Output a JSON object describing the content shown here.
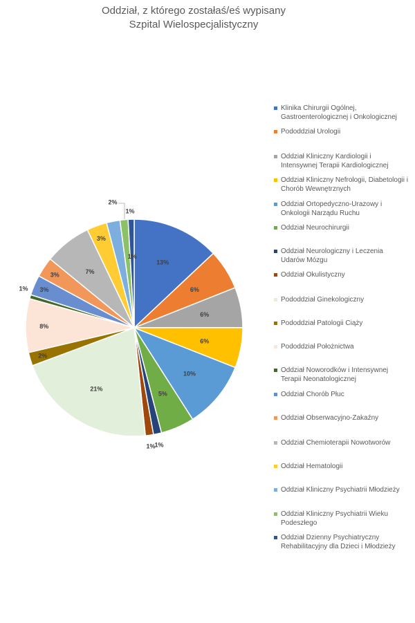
{
  "chart_data": {
    "type": "pie",
    "title": "Oddział, z którego zostałaś/eś wypisany",
    "subtitle": "Szpital Wielospecjalistyczny",
    "legend_position": "right",
    "slices": [
      {
        "label": "Klinika Chirurgii Ogólnej, Gastroenterologicznej i Onkologicznej",
        "value": 13,
        "display": "13%",
        "color": "#4472C4"
      },
      {
        "label": "Pododdział Urologii",
        "value": 6,
        "display": "6%",
        "color": "#ED7D31"
      },
      {
        "label": "Oddział Kliniczny Kardiologii i Intensywnej Terapii Kardiologicznej",
        "value": 6,
        "display": "6%",
        "color": "#A5A5A5"
      },
      {
        "label": "Oddział Kliniczny Nefrologii, Diabetologii i Chorób Wewnętrznych",
        "value": 6,
        "display": "6%",
        "color": "#FFC000"
      },
      {
        "label": "Oddział Ortopedyczno-Urazowy i Onkologii Narządu Ruchu",
        "value": 10,
        "display": "10%",
        "color": "#5B9BD5"
      },
      {
        "label": "Oddział Neurochirurgii",
        "value": 5,
        "display": "5%",
        "color": "#70AD47"
      },
      {
        "label": "Oddział Neurologiczny i Leczenia Udarów Mózgu",
        "value": 1.2,
        "display": "1%",
        "color": "#264478"
      },
      {
        "label": "Oddział Okulistyczny",
        "value": 1.2,
        "display": "1%",
        "color": "#9E480E"
      },
      {
        "label": "Pododdział Ginekologiczny",
        "value": 21,
        "display": "21%",
        "color": "#E2EFDA"
      },
      {
        "label": "Pododdział Patologii Ciąży",
        "value": 2,
        "display": "2%",
        "color": "#997300"
      },
      {
        "label": "Pododdział Położnictwa",
        "value": 8,
        "display": "8%",
        "color": "#FCE4D6"
      },
      {
        "label": "Oddział Noworodków i Intensywnej Terapii Neonatologicznej",
        "value": 0.6,
        "display": "1%",
        "color": "#43682B"
      },
      {
        "label": "Oddział Chorób Płuc",
        "value": 3,
        "display": "3%",
        "color": "#698ED0"
      },
      {
        "label": "Oddział Obserwacyjno-Zakaźny",
        "value": 3,
        "display": "3%",
        "color": "#F1975A"
      },
      {
        "label": "Oddział Chemioterapii Nowotworów",
        "value": 7,
        "display": "7%",
        "color": "#B7B7B7"
      },
      {
        "label": "Oddział Hematologii",
        "value": 3,
        "display": "3%",
        "color": "#FFCD33"
      },
      {
        "label": "Oddział Kliniczny Psychiatrii Młodzieży",
        "value": 2,
        "display": "2%",
        "color": "#7CAFDD"
      },
      {
        "label": "Oddział Kliniczny Psychiatrii Wieku Podeszłego",
        "value": 1.2,
        "display": "1%",
        "color": "#8CC168"
      },
      {
        "label": "Oddział Dzienny Psychiatryczny Rehabilitacyjny dla Dzieci i Młodzieży",
        "value": 0.9,
        "display": "1%",
        "color": "#2F5597"
      }
    ]
  }
}
